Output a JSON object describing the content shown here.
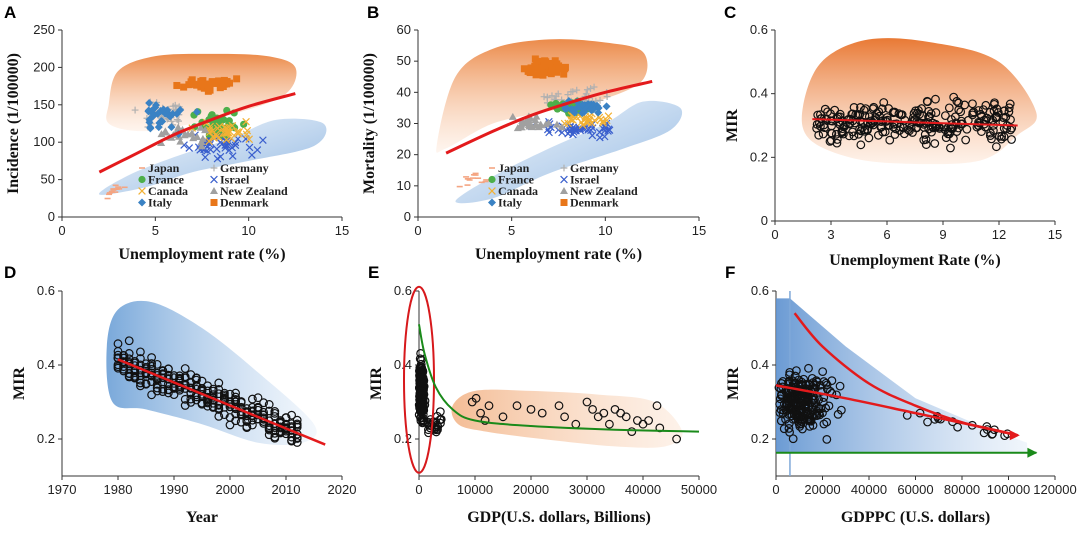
{
  "chart_data": [
    {
      "panel": "A",
      "type": "scatter",
      "xlabel": "Unemployment rate (%)",
      "ylabel": "Incidence (1/100000)",
      "xlim": [
        0,
        15
      ],
      "ylim": [
        0,
        250
      ],
      "xticks": [
        0,
        5,
        10,
        15
      ],
      "yticks": [
        0,
        50,
        100,
        150,
        200,
        250
      ],
      "legend": [
        "Japan",
        "Germany",
        "France",
        "Israel",
        "Canada",
        "New Zealand",
        "Italy",
        "Denmark"
      ],
      "trend": [
        [
          2,
          60
        ],
        [
          4,
          85
        ],
        [
          6,
          110
        ],
        [
          8,
          130
        ],
        [
          10,
          148
        ],
        [
          12.5,
          165
        ]
      ],
      "regions": {
        "orange": [
          [
            2.5,
            150
          ],
          [
            3,
            195
          ],
          [
            5,
            215
          ],
          [
            8,
            218
          ],
          [
            11,
            215
          ],
          [
            12.5,
            200
          ],
          [
            12,
            165
          ],
          [
            9.5,
            140
          ],
          [
            6,
            120
          ],
          [
            4,
            115
          ],
          [
            2.5,
            125
          ]
        ],
        "blue": [
          [
            2,
            30
          ],
          [
            3.5,
            55
          ],
          [
            6,
            80
          ],
          [
            9,
            105
          ],
          [
            11.5,
            130
          ],
          [
            14,
            125
          ],
          [
            13.5,
            95
          ],
          [
            10,
            75
          ],
          [
            7,
            60
          ],
          [
            4.5,
            40
          ]
        ]
      }
    },
    {
      "panel": "B",
      "type": "scatter",
      "xlabel": "Unemployment rate (%)",
      "ylabel": "Mortality (1/100000)",
      "xlim": [
        0,
        15
      ],
      "ylim": [
        0,
        60
      ],
      "xticks": [
        0,
        5,
        10,
        15
      ],
      "yticks": [
        0,
        10,
        20,
        30,
        40,
        50,
        60
      ],
      "legend": [
        "Japan",
        "Germany",
        "France",
        "Israel",
        "Canada",
        "New Zealand",
        "Italy",
        "Denmark"
      ],
      "trend": [
        [
          1.5,
          20.5
        ],
        [
          4,
          27.5
        ],
        [
          6,
          32.5
        ],
        [
          8,
          36.5
        ],
        [
          10,
          40
        ],
        [
          12.5,
          43.5
        ]
      ],
      "regions": {
        "orange": [
          [
            1,
            23
          ],
          [
            2,
            45
          ],
          [
            4,
            54
          ],
          [
            7,
            57
          ],
          [
            10,
            56
          ],
          [
            12,
            53
          ],
          [
            12,
            44
          ],
          [
            10,
            38
          ],
          [
            7,
            34
          ],
          [
            4,
            30
          ],
          [
            1.5,
            22
          ]
        ],
        "blue": [
          [
            2,
            5
          ],
          [
            4,
            13
          ],
          [
            7,
            22
          ],
          [
            10,
            30
          ],
          [
            12,
            37
          ],
          [
            14,
            35
          ],
          [
            13.5,
            28
          ],
          [
            11,
            22
          ],
          [
            7,
            14
          ],
          [
            4,
            6
          ]
        ]
      }
    },
    {
      "panel": "C",
      "type": "scatter",
      "xlabel": "Unemployment Rate (%)",
      "ylabel": "MIR",
      "xlim": [
        0,
        15
      ],
      "ylim": [
        0,
        0.6
      ],
      "xticks": [
        0,
        3,
        6,
        9,
        12,
        15
      ],
      "yticks": [
        0,
        0.2,
        0.4,
        0.6
      ],
      "trend": [
        [
          2,
          0.32
        ],
        [
          13,
          0.3
        ]
      ]
    },
    {
      "panel": "D",
      "type": "scatter",
      "xlabel": "Year",
      "ylabel": "MIR",
      "xlim": [
        1970,
        2020
      ],
      "ylim": [
        0.1,
        0.6
      ],
      "xticks": [
        1970,
        1980,
        1990,
        2000,
        2010,
        2020
      ],
      "yticks": [
        0.2,
        0.4,
        0.6
      ],
      "trend": [
        [
          1980,
          0.415
        ],
        [
          2017,
          0.185
        ]
      ]
    },
    {
      "panel": "E",
      "type": "scatter",
      "xlabel": "GDP(U.S. dollars, Billions)",
      "ylabel": "MIR",
      "xlim": [
        0,
        50000
      ],
      "ylim": [
        0.1,
        0.6
      ],
      "xticks": [
        0,
        10000,
        20000,
        30000,
        40000,
        50000
      ],
      "yticks": [
        0.2,
        0.4,
        0.6
      ],
      "trend": [
        [
          0,
          0.51
        ],
        [
          1000,
          0.43
        ],
        [
          3000,
          0.34
        ],
        [
          6000,
          0.28
        ],
        [
          10000,
          0.25
        ],
        [
          20000,
          0.235
        ],
        [
          35000,
          0.225
        ],
        [
          50000,
          0.22
        ]
      ],
      "points": [
        [
          9500,
          0.3
        ],
        [
          10200,
          0.31
        ],
        [
          11000,
          0.27
        ],
        [
          11800,
          0.25
        ],
        [
          12500,
          0.29
        ],
        [
          15000,
          0.26
        ],
        [
          17500,
          0.29
        ],
        [
          20000,
          0.28
        ],
        [
          22000,
          0.27
        ],
        [
          25000,
          0.29
        ],
        [
          26000,
          0.26
        ],
        [
          28000,
          0.24
        ],
        [
          30000,
          0.3
        ],
        [
          31000,
          0.28
        ],
        [
          32000,
          0.26
        ],
        [
          33000,
          0.27
        ],
        [
          34000,
          0.24
        ],
        [
          35000,
          0.28
        ],
        [
          36000,
          0.27
        ],
        [
          37000,
          0.26
        ],
        [
          38000,
          0.22
        ],
        [
          39000,
          0.25
        ],
        [
          40000,
          0.24
        ],
        [
          41000,
          0.25
        ],
        [
          42500,
          0.29
        ],
        [
          43000,
          0.23
        ],
        [
          46000,
          0.2
        ]
      ]
    },
    {
      "panel": "F",
      "type": "scatter",
      "xlabel": "GDPPC (U.S. dollars)",
      "ylabel": "MIR",
      "xlim": [
        0,
        120000
      ],
      "ylim": [
        0.1,
        0.6
      ],
      "xticks": [
        0,
        20000,
        40000,
        60000,
        80000,
        100000,
        120000
      ],
      "yticks": [
        0.2,
        0.4,
        0.6
      ],
      "trend_red_upper": [
        [
          8000,
          0.54
        ],
        [
          20000,
          0.45
        ],
        [
          40000,
          0.35
        ],
        [
          60000,
          0.29
        ],
        [
          80000,
          0.245
        ],
        [
          104000,
          0.21
        ]
      ],
      "trend_red_lower": [
        [
          0,
          0.345
        ],
        [
          30000,
          0.31
        ],
        [
          60000,
          0.27
        ],
        [
          90000,
          0.23
        ],
        [
          104000,
          0.21
        ]
      ],
      "trend_green": [
        [
          0,
          0.163
        ],
        [
          112000,
          0.163
        ]
      ]
    }
  ],
  "colors": {
    "trend_red": "#e31a1c",
    "trend_green": "#1a8a1a",
    "ellipse_red": "#d7191c",
    "japan": "#f4a582",
    "germany": "#b0b0b0",
    "france": "#4daf4a",
    "israel": "#3a5fcd",
    "canada": "#f2b134",
    "newzealand": "#a0a0a0",
    "italy": "#3a82c4",
    "denmark": "#e8761a"
  }
}
